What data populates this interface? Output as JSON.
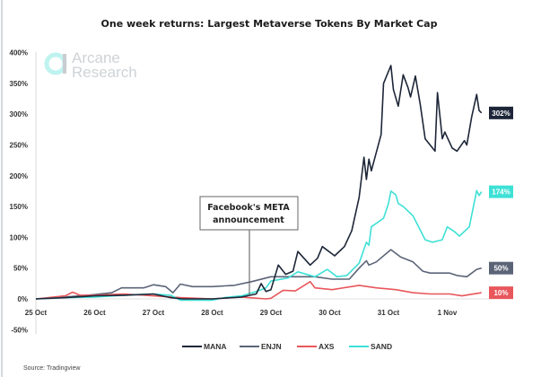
{
  "chart_data": {
    "type": "line",
    "title": "One week returns: Largest Metaverse Tokens By Market Cap",
    "xlabel": "",
    "ylabel": "",
    "x_ticks": [
      "25 Oct",
      "26 Oct",
      "27 Oct",
      "28 Oct",
      "29 Oct",
      "30 Oct",
      "31 Oct",
      "1 Nov"
    ],
    "y_ticks": [
      "400%",
      "350%",
      "300%",
      "250%",
      "200%",
      "150%",
      "100%",
      "50%",
      "0%",
      "-50%"
    ],
    "ylim": [
      -50,
      400
    ],
    "y_unit": "%",
    "grid": false,
    "legend_position": "bottom",
    "annotation": {
      "line1": "Facebook's META",
      "line2": "announcement",
      "time": "28 Oct 17:00"
    },
    "series": [
      {
        "name": "MANA",
        "color": "#1d2638",
        "end_label": "302%",
        "points": [
          [
            "25 Oct 00:00",
            0
          ],
          [
            "25 Oct 12:00",
            2
          ],
          [
            "26 Oct 00:00",
            5
          ],
          [
            "26 Oct 12:00",
            6
          ],
          [
            "27 Oct 00:00",
            8
          ],
          [
            "27 Oct 07:00",
            2
          ],
          [
            "27 Oct 12:00",
            0
          ],
          [
            "28 Oct 00:00",
            0
          ],
          [
            "28 Oct 12:00",
            3
          ],
          [
            "28 Oct 18:00",
            8
          ],
          [
            "28 Oct 20:00",
            25
          ],
          [
            "28 Oct 22:00",
            12
          ],
          [
            "29 Oct 00:00",
            15
          ],
          [
            "29 Oct 03:00",
            55
          ],
          [
            "29 Oct 06:00",
            40
          ],
          [
            "29 Oct 09:00",
            45
          ],
          [
            "29 Oct 11:00",
            77
          ],
          [
            "29 Oct 16:00",
            55
          ],
          [
            "29 Oct 19:00",
            66
          ],
          [
            "29 Oct 21:00",
            85
          ],
          [
            "30 Oct 02:00",
            70
          ],
          [
            "30 Oct 06:00",
            85
          ],
          [
            "30 Oct 09:00",
            111
          ],
          [
            "30 Oct 12:00",
            165
          ],
          [
            "30 Oct 14:00",
            230
          ],
          [
            "30 Oct 15:00",
            194
          ],
          [
            "30 Oct 16:00",
            227
          ],
          [
            "30 Oct 17:00",
            208
          ],
          [
            "30 Oct 21:00",
            267
          ],
          [
            "30 Oct 22:00",
            350
          ],
          [
            "31 Oct 01:00",
            379
          ],
          [
            "31 Oct 02:00",
            340
          ],
          [
            "31 Oct 04:00",
            313
          ],
          [
            "31 Oct 06:00",
            364
          ],
          [
            "31 Oct 08:00",
            343
          ],
          [
            "31 Oct 09:00",
            328
          ],
          [
            "31 Oct 11:00",
            362
          ],
          [
            "31 Oct 13:00",
            315
          ],
          [
            "31 Oct 15:00",
            260
          ],
          [
            "31 Oct 18:00",
            245
          ],
          [
            "31 Oct 19:00",
            240
          ],
          [
            "31 Oct 20:00",
            335
          ],
          [
            "31 Oct 22:00",
            260
          ],
          [
            "31 Oct 23:00",
            271
          ],
          [
            "1 Nov 02:00",
            245
          ],
          [
            "1 Nov 04:00",
            240
          ],
          [
            "1 Nov 07:00",
            257
          ],
          [
            "1 Nov 08:00",
            250
          ],
          [
            "1 Nov 10:00",
            296
          ],
          [
            "1 Nov 12:00",
            332
          ],
          [
            "1 Nov 13:00",
            306
          ],
          [
            "1 Nov 14:00",
            302
          ]
        ]
      },
      {
        "name": "ENJN",
        "color": "#5b6477",
        "end_label": "50%",
        "points": [
          [
            "25 Oct 00:00",
            0
          ],
          [
            "25 Oct 12:00",
            3
          ],
          [
            "26 Oct 00:00",
            7
          ],
          [
            "26 Oct 07:00",
            10
          ],
          [
            "26 Oct 11:00",
            18
          ],
          [
            "26 Oct 20:00",
            18
          ],
          [
            "27 Oct 00:00",
            23
          ],
          [
            "27 Oct 05:00",
            20
          ],
          [
            "27 Oct 08:00",
            10
          ],
          [
            "27 Oct 11:00",
            24
          ],
          [
            "27 Oct 16:00",
            20
          ],
          [
            "28 Oct 00:00",
            20
          ],
          [
            "28 Oct 09:00",
            22
          ],
          [
            "28 Oct 16:00",
            28
          ],
          [
            "29 Oct 00:00",
            36
          ],
          [
            "29 Oct 07:00",
            36
          ],
          [
            "29 Oct 18:00",
            36
          ],
          [
            "30 Oct 01:00",
            32
          ],
          [
            "30 Oct 08:00",
            32
          ],
          [
            "30 Oct 12:00",
            50
          ],
          [
            "30 Oct 15:00",
            62
          ],
          [
            "30 Oct 16:00",
            55
          ],
          [
            "30 Oct 19:00",
            60
          ],
          [
            "31 Oct 01:00",
            80
          ],
          [
            "31 Oct 05:00",
            68
          ],
          [
            "31 Oct 10:00",
            60
          ],
          [
            "31 Oct 14:00",
            45
          ],
          [
            "31 Oct 17:00",
            42
          ],
          [
            "1 Nov 01:00",
            42
          ],
          [
            "1 Nov 04:00",
            38
          ],
          [
            "1 Nov 08:00",
            36
          ],
          [
            "1 Nov 12:00",
            48
          ],
          [
            "1 Nov 14:00",
            50
          ]
        ]
      },
      {
        "name": "AXS",
        "color": "#e8575c",
        "end_label": "10%",
        "points": [
          [
            "25 Oct 00:00",
            0
          ],
          [
            "25 Oct 12:00",
            5
          ],
          [
            "25 Oct 15:00",
            11
          ],
          [
            "25 Oct 18:00",
            6
          ],
          [
            "26 Oct 00:00",
            6
          ],
          [
            "26 Oct 12:00",
            8
          ],
          [
            "27 Oct 00:00",
            5
          ],
          [
            "27 Oct 11:00",
            2
          ],
          [
            "28 Oct 00:00",
            0
          ],
          [
            "28 Oct 12:00",
            3
          ],
          [
            "28 Oct 22:00",
            0
          ],
          [
            "29 Oct 00:00",
            1
          ],
          [
            "29 Oct 05:00",
            14
          ],
          [
            "29 Oct 10:00",
            13
          ],
          [
            "29 Oct 16:00",
            28
          ],
          [
            "29 Oct 18:00",
            18
          ],
          [
            "30 Oct 01:00",
            15
          ],
          [
            "30 Oct 12:00",
            22
          ],
          [
            "30 Oct 19:00",
            18
          ],
          [
            "31 Oct 03:00",
            15
          ],
          [
            "31 Oct 10:00",
            10
          ],
          [
            "31 Oct 17:00",
            8
          ],
          [
            "1 Nov 01:00",
            8
          ],
          [
            "1 Nov 06:00",
            5
          ],
          [
            "1 Nov 14:00",
            10
          ]
        ]
      },
      {
        "name": "SAND",
        "color": "#3ee0d6",
        "end_label": "174%",
        "points": [
          [
            "25 Oct 00:00",
            0
          ],
          [
            "25 Oct 12:00",
            2
          ],
          [
            "26 Oct 00:00",
            3
          ],
          [
            "26 Oct 12:00",
            6
          ],
          [
            "27 Oct 00:00",
            8
          ],
          [
            "27 Oct 07:00",
            6
          ],
          [
            "27 Oct 11:00",
            -2
          ],
          [
            "28 Oct 00:00",
            -2
          ],
          [
            "28 Oct 05:00",
            2
          ],
          [
            "28 Oct 12:00",
            5
          ],
          [
            "28 Oct 18:00",
            12
          ],
          [
            "28 Oct 22:00",
            18
          ],
          [
            "29 Oct 00:00",
            29
          ],
          [
            "29 Oct 07:00",
            34
          ],
          [
            "29 Oct 11:00",
            44
          ],
          [
            "29 Oct 18:00",
            36
          ],
          [
            "29 Oct 23:00",
            48
          ],
          [
            "30 Oct 03:00",
            36
          ],
          [
            "30 Oct 07:00",
            38
          ],
          [
            "30 Oct 12:00",
            58
          ],
          [
            "30 Oct 15:00",
            92
          ],
          [
            "30 Oct 16:00",
            87
          ],
          [
            "30 Oct 17:00",
            117
          ],
          [
            "30 Oct 22:00",
            131
          ],
          [
            "31 Oct 00:00",
            155
          ],
          [
            "31 Oct 01:00",
            175
          ],
          [
            "31 Oct 03:00",
            169
          ],
          [
            "31 Oct 04:00",
            155
          ],
          [
            "31 Oct 06:00",
            150
          ],
          [
            "31 Oct 10:00",
            135
          ],
          [
            "31 Oct 15:00",
            96
          ],
          [
            "31 Oct 18:00",
            92
          ],
          [
            "31 Oct 22:00",
            96
          ],
          [
            "1 Nov 00:00",
            117
          ],
          [
            "1 Nov 03:00",
            109
          ],
          [
            "1 Nov 05:00",
            102
          ],
          [
            "1 Nov 09:00",
            117
          ],
          [
            "1 Nov 12:00",
            176
          ],
          [
            "1 Nov 13:00",
            168
          ],
          [
            "1 Nov 14:00",
            174
          ]
        ]
      }
    ]
  },
  "logo": {
    "line1": "Arcane",
    "line2": "Research"
  },
  "source": "Source: Tradingview"
}
